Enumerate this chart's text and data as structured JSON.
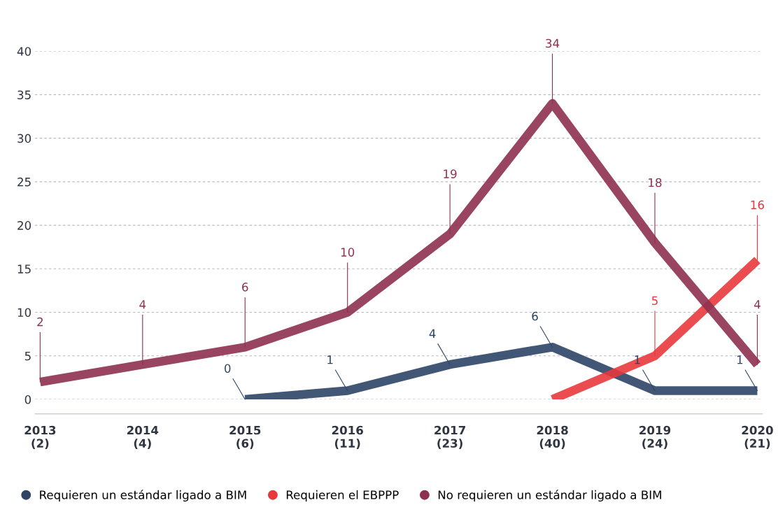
{
  "chart_data": {
    "type": "line",
    "categories": [
      "2013\n(2)",
      "2014\n(4)",
      "2015\n(6)",
      "2016\n(11)",
      "2017\n(23)",
      "2018\n(40)",
      "2019\n(24)",
      "2020\n(21)"
    ],
    "series": [
      {
        "name": "Requieren un estándar ligado a BIM",
        "color": "#2e4466",
        "values": [
          null,
          null,
          0,
          1,
          4,
          6,
          1,
          1
        ],
        "value_labels": [
          null,
          null,
          "0",
          "1",
          "4",
          "6",
          "1",
          "1"
        ]
      },
      {
        "name": "Requieren el EBPPP",
        "color": "#e8383d",
        "values": [
          null,
          null,
          null,
          null,
          null,
          0,
          5,
          16
        ],
        "value_labels": [
          null,
          null,
          null,
          null,
          null,
          null,
          "5",
          "16"
        ]
      },
      {
        "name": "No requieren un estándar ligado a BIM",
        "color": "#8e3050",
        "values": [
          2,
          4,
          6,
          10,
          19,
          34,
          18,
          4
        ],
        "value_labels": [
          "2",
          "4",
          "6",
          "10",
          "19",
          "34",
          "18",
          "4"
        ]
      }
    ],
    "ylim": [
      0,
      40
    ],
    "yticks": [
      0,
      5,
      10,
      15,
      20,
      25,
      30,
      35,
      40
    ],
    "grid": "y",
    "legend": "bottom",
    "marker": "none",
    "line_style": "solid"
  }
}
